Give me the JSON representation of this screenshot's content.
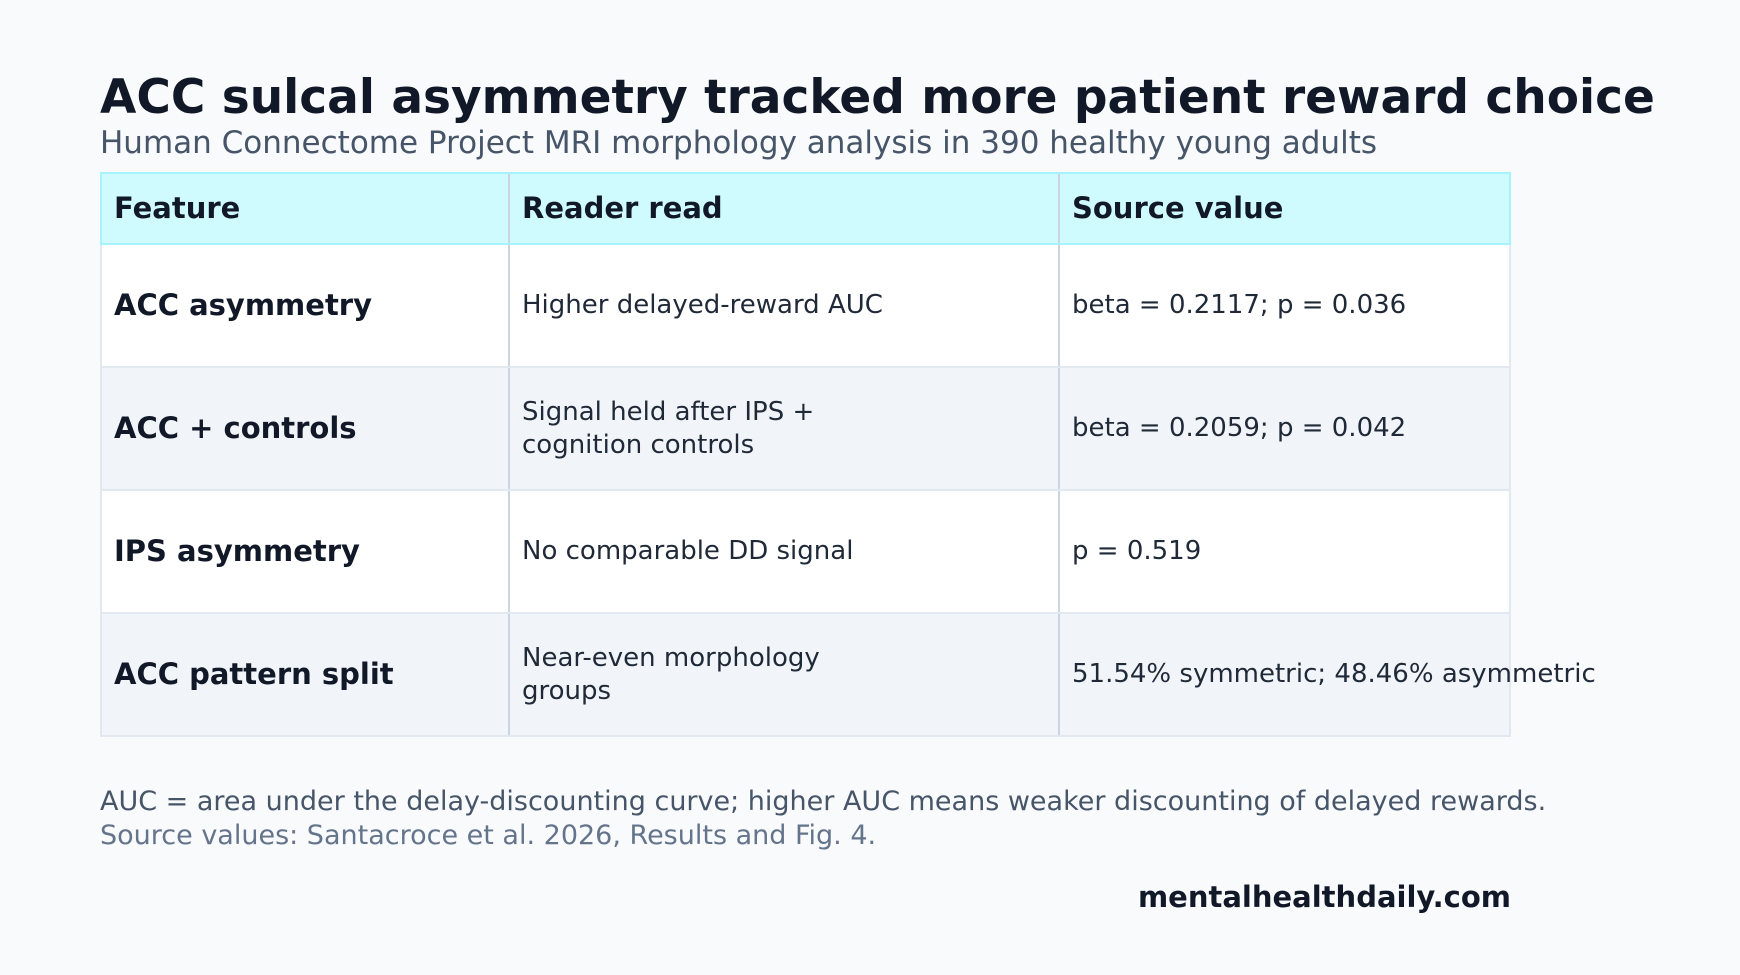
{
  "header": {
    "title": "ACC sulcal asymmetry tracked more patient reward choice",
    "subtitle": "Human Connectome Project MRI morphology analysis in 390 healthy young adults"
  },
  "table": {
    "columns": [
      "Feature",
      "Reader read",
      "Source value"
    ],
    "rows": [
      [
        "ACC asymmetry",
        "Higher delayed-reward AUC",
        "beta = 0.2117; p = 0.036"
      ],
      [
        "ACC + controls",
        "Signal held after IPS + cognition controls",
        "beta = 0.2059; p = 0.042"
      ],
      [
        "IPS asymmetry",
        "No comparable DD signal",
        "p = 0.519"
      ],
      [
        "ACC pattern split",
        "Near-even morphology groups",
        "51.54% symmetric; 48.46% asymmetric"
      ]
    ]
  },
  "footer": {
    "notes": [
      "AUC = area under the delay-discounting curve; higher AUC means weaker discounting of delayed rewards.",
      "Source values: Santacroce et al. 2026, Results and Fig. 4."
    ],
    "brand": "mentalhealthdaily.com"
  }
}
